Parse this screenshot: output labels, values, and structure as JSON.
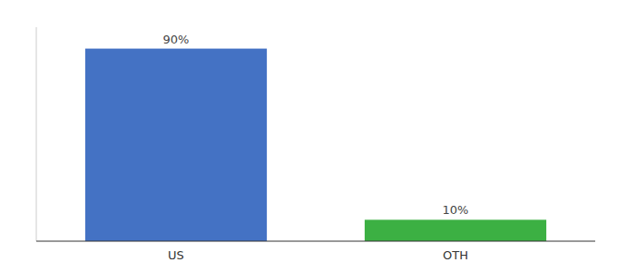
{
  "chart_data": {
    "type": "bar",
    "categories": [
      "US",
      "OTH"
    ],
    "values": [
      90,
      10
    ],
    "value_labels": [
      "90%",
      "10%"
    ],
    "colors": [
      "#4472c4",
      "#3cb043"
    ],
    "ylim": [
      0,
      100
    ],
    "data_labels": true,
    "tick_labels": "x"
  }
}
